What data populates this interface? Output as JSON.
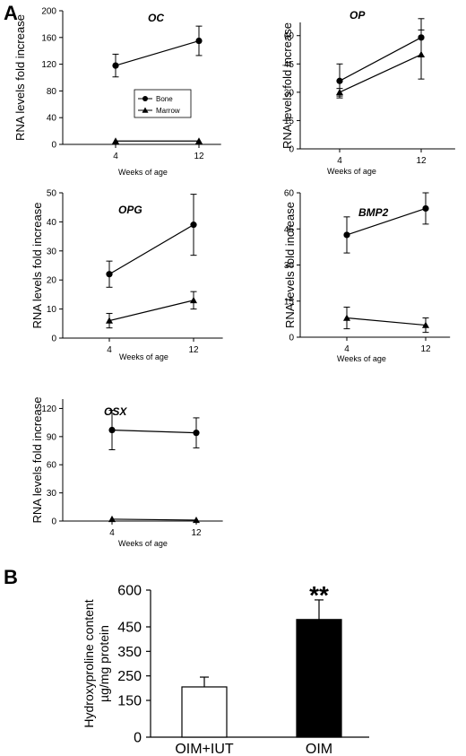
{
  "panel_labels": {
    "a": "A",
    "b": "B"
  },
  "chart_data": [
    {
      "type": "line",
      "title": "OC",
      "xlabel": "Weeks of age",
      "ylabel": "RNA levels fold increase",
      "categories": [
        "4",
        "12"
      ],
      "ylim": [
        0,
        200
      ],
      "yticks": [
        "0",
        "40",
        "80",
        "120",
        "160",
        "200"
      ],
      "legend": {
        "placement": "center-right",
        "entries": [
          "Bone",
          "Marrow"
        ]
      },
      "series": [
        {
          "name": "Bone",
          "marker": "circle",
          "values": [
            118,
            155
          ],
          "err": [
            17,
            22
          ]
        },
        {
          "name": "Marrow",
          "marker": "triangle",
          "values": [
            5,
            5
          ],
          "err": [
            0,
            0
          ]
        }
      ]
    },
    {
      "type": "line",
      "title": "OP",
      "xlabel": "Weeks of age",
      "ylabel": "RNA levels fold increase",
      "categories": [
        "4",
        "12"
      ],
      "ylim": [
        0,
        67
      ],
      "yticks": [
        "0",
        "15",
        "30",
        "45",
        "60"
      ],
      "series": [
        {
          "name": "Bone",
          "marker": "circle",
          "values": [
            36,
            59
          ],
          "err": [
            9,
            10
          ]
        },
        {
          "name": "Marrow",
          "marker": "triangle",
          "values": [
            30,
            50
          ],
          "err": [
            2,
            13
          ]
        }
      ]
    },
    {
      "type": "line",
      "title": "OPG",
      "xlabel": "Weeks of age",
      "ylabel": "RNA levels fold increase",
      "categories": [
        "4",
        "12"
      ],
      "ylim": [
        0,
        50
      ],
      "yticks": [
        "0",
        "10",
        "20",
        "30",
        "40",
        "50"
      ],
      "series": [
        {
          "name": "Bone",
          "marker": "circle",
          "values": [
            22,
            39
          ],
          "err": [
            4.5,
            10.5
          ]
        },
        {
          "name": "Marrow",
          "marker": "triangle",
          "values": [
            6,
            13
          ],
          "err": [
            2.5,
            3
          ]
        }
      ]
    },
    {
      "type": "line",
      "title": "BMP2",
      "xlabel": "Weeks of age",
      "ylabel": "RNA levels fold increase",
      "categories": [
        "4",
        "12"
      ],
      "ylim": [
        0,
        60
      ],
      "yticks": [
        "0",
        "15",
        "30",
        "45",
        "60"
      ],
      "series": [
        {
          "name": "Bone",
          "marker": "circle",
          "values": [
            42.5,
            53.5
          ],
          "err": [
            7.5,
            6.5
          ]
        },
        {
          "name": "Marrow",
          "marker": "triangle",
          "values": [
            8,
            5
          ],
          "err": [
            4.5,
            3
          ]
        }
      ]
    },
    {
      "type": "line",
      "title": "OSX",
      "xlabel": "Weeks of age",
      "ylabel": "RNA levels fold increase",
      "categories": [
        "4",
        "12"
      ],
      "ylim": [
        0,
        130
      ],
      "yticks": [
        "0",
        "30",
        "60",
        "90",
        "120"
      ],
      "series": [
        {
          "name": "Bone",
          "marker": "circle",
          "values": [
            97,
            94
          ],
          "err": [
            21,
            16
          ]
        },
        {
          "name": "Marrow",
          "marker": "triangle",
          "values": [
            2,
            1
          ],
          "err": [
            0,
            0
          ]
        }
      ]
    },
    {
      "type": "bar",
      "ylabel_lines": [
        "Hydroxyproline content",
        "µg/mg protein"
      ],
      "categories": [
        "OIM+IUT",
        "OIM"
      ],
      "values": [
        205,
        480
      ],
      "err": [
        40,
        80
      ],
      "fills": [
        "#ffffff",
        "#000000"
      ],
      "ylim": [
        0,
        600
      ],
      "yticks": [
        {
          "v": 0,
          "t": "0"
        },
        {
          "v": 150,
          "t": "150"
        },
        {
          "v": 250,
          "t": "250"
        },
        {
          "v": 350,
          "t": "350"
        },
        {
          "v": 450,
          "t": "450"
        },
        {
          "v": 600,
          "t": "600"
        }
      ],
      "annotation": "**"
    }
  ]
}
